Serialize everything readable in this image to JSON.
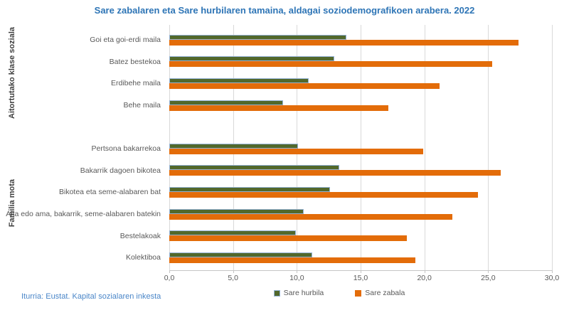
{
  "title": "Sare zabalaren eta Sare hurbilaren tamaina, aldagai soziodemografikoen arabera. 2022",
  "source_note": "Iturria: Eustat. Kapital sozialaren inkesta",
  "colors": {
    "title_text": "#2E75B6",
    "source_text": "#4A86C8",
    "sare_hurbila_fill": "#52682B",
    "sare_hurbila_border": "#95B3D7",
    "sare_zabala_fill": "#E36C09",
    "gridline": "#D9D9D9",
    "axis_text": "#595959",
    "group_label_text": "#3F3F3F"
  },
  "legend": [
    {
      "label": "Sare hurbila"
    },
    {
      "label": "Sare zabala"
    }
  ],
  "chart_data": {
    "type": "bar",
    "orientation": "horizontal",
    "title": "Sare zabalaren eta Sare hurbilaren tamaina, aldagai soziodemografikoen arabera. 2022",
    "xlabel": "",
    "ylabel": "",
    "xlim": [
      0,
      30
    ],
    "xticks": [
      "0,0",
      "5,0",
      "10,0",
      "15,0",
      "20,0",
      "25,0",
      "30,0"
    ],
    "grid": true,
    "legend_position": "bottom",
    "series_names": [
      "Sare hurbila",
      "Sare zabala"
    ],
    "groups": [
      {
        "group_label": "Aitortutako klase soziala",
        "rows": [
          {
            "category": "Goi eta goi-erdi maila",
            "sare_hurbila": 13.8,
            "sare_zabala": 27.4
          },
          {
            "category": "Batez bestekoa",
            "sare_hurbila": 12.8,
            "sare_zabala": 25.3
          },
          {
            "category": "Erdibehe maila",
            "sare_hurbila": 10.8,
            "sare_zabala": 21.2
          },
          {
            "category": "Behe maila",
            "sare_hurbila": 8.8,
            "sare_zabala": 17.2
          }
        ]
      },
      {
        "group_label": "Familia mota",
        "rows": [
          {
            "category": "Pertsona bakarrekoa",
            "sare_hurbila": 10.0,
            "sare_zabala": 19.9
          },
          {
            "category": "Bakarrik dagoen bikotea",
            "sare_hurbila": 13.2,
            "sare_zabala": 26.0
          },
          {
            "category": "Bikotea eta seme-alabaren bat",
            "sare_hurbila": 12.5,
            "sare_zabala": 24.2
          },
          {
            "category": "Aita edo ama, bakarrik, seme-alabaren batekin",
            "sare_hurbila": 10.4,
            "sare_zabala": 22.2
          },
          {
            "category": "Bestelakoak",
            "sare_hurbila": 9.8,
            "sare_zabala": 18.6
          },
          {
            "category": "Kolektiboa",
            "sare_hurbila": 11.1,
            "sare_zabala": 19.3
          }
        ]
      }
    ]
  }
}
